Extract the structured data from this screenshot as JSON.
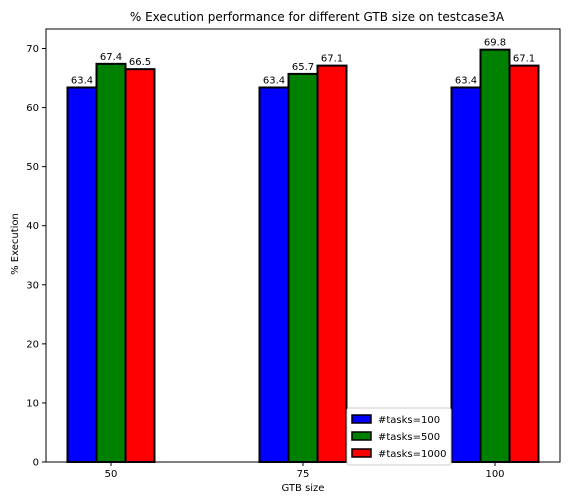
{
  "chart_data": {
    "type": "bar",
    "title": "% Execution performance for different GTB size on testcase3A",
    "xlabel": "GTB size",
    "ylabel": "% Execution",
    "categories": [
      "50",
      "75",
      "100"
    ],
    "series": [
      {
        "name": "#tasks=100",
        "color": "#0000ff",
        "values": [
          63.4,
          63.4,
          63.4
        ]
      },
      {
        "name": "#tasks=500",
        "color": "#008000",
        "values": [
          67.4,
          65.7,
          69.8
        ]
      },
      {
        "name": "#tasks=1000",
        "color": "#ff0000",
        "values": [
          66.5,
          67.1,
          67.1
        ]
      }
    ],
    "ylim": [
      0,
      73.3
    ],
    "yticks": [
      0,
      10,
      20,
      30,
      40,
      50,
      60,
      70
    ],
    "grid": false,
    "legend": "lower-right"
  }
}
